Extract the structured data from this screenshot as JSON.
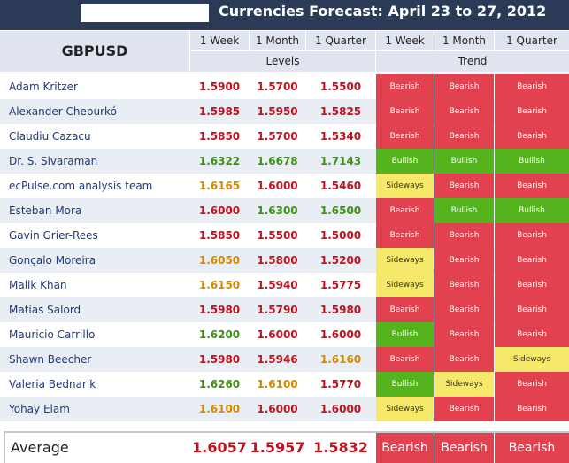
{
  "title": "Currencies Forecast: April 23 to 27, 2012",
  "pair": "GBPUSD",
  "columns": {
    "levels": [
      "1 Week",
      "1 Month",
      "1 Quarter"
    ],
    "trend": [
      "1 Week",
      "1 Month",
      "1 Quarter"
    ],
    "levels_group": "Levels",
    "trend_group": "Trend"
  },
  "colors": {
    "bearish": "#e2424f",
    "bullish": "#55b41e",
    "sideways": "#f5e86a",
    "header_bg": "#2a3a57"
  },
  "rows": [
    {
      "name": "Adam Kritzer",
      "levels": [
        "1.5900",
        "1.5700",
        "1.5500"
      ],
      "level_colors": [
        "red",
        "red",
        "red"
      ],
      "trend": [
        "Bearish",
        "Bearish",
        "Bearish"
      ]
    },
    {
      "name": "Alexander Chepurkó",
      "levels": [
        "1.5985",
        "1.5950",
        "1.5825"
      ],
      "level_colors": [
        "red",
        "red",
        "red"
      ],
      "trend": [
        "Bearish",
        "Bearish",
        "Bearish"
      ]
    },
    {
      "name": "Claudiu Cazacu",
      "levels": [
        "1.5850",
        "1.5700",
        "1.5340"
      ],
      "level_colors": [
        "red",
        "red",
        "red"
      ],
      "trend": [
        "Bearish",
        "Bearish",
        "Bearish"
      ]
    },
    {
      "name": "Dr. S. Sivaraman",
      "levels": [
        "1.6322",
        "1.6678",
        "1.7143"
      ],
      "level_colors": [
        "green",
        "green",
        "green"
      ],
      "trend": [
        "Bullish",
        "Bullish",
        "Bullish"
      ]
    },
    {
      "name": "ecPulse.com analysis team",
      "levels": [
        "1.6165",
        "1.6000",
        "1.5460"
      ],
      "level_colors": [
        "orange",
        "red",
        "red"
      ],
      "trend": [
        "Sideways",
        "Bearish",
        "Bearish"
      ]
    },
    {
      "name": "Esteban Mora",
      "levels": [
        "1.6000",
        "1.6300",
        "1.6500"
      ],
      "level_colors": [
        "red",
        "green",
        "green"
      ],
      "trend": [
        "Bearish",
        "Bullish",
        "Bullish"
      ]
    },
    {
      "name": "Gavin Grier-Rees",
      "levels": [
        "1.5850",
        "1.5500",
        "1.5000"
      ],
      "level_colors": [
        "red",
        "red",
        "red"
      ],
      "trend": [
        "Bearish",
        "Bearish",
        "Bearish"
      ]
    },
    {
      "name": "Gonçalo Moreira",
      "levels": [
        "1.6050",
        "1.5800",
        "1.5200"
      ],
      "level_colors": [
        "orange",
        "red",
        "red"
      ],
      "trend": [
        "Sideways",
        "Bearish",
        "Bearish"
      ]
    },
    {
      "name": "Malik Khan",
      "levels": [
        "1.6150",
        "1.5940",
        "1.5775"
      ],
      "level_colors": [
        "orange",
        "red",
        "red"
      ],
      "trend": [
        "Sideways",
        "Bearish",
        "Bearish"
      ]
    },
    {
      "name": "Matías Salord",
      "levels": [
        "1.5980",
        "1.5790",
        "1.5980"
      ],
      "level_colors": [
        "red",
        "red",
        "red"
      ],
      "trend": [
        "Bearish",
        "Bearish",
        "Bearish"
      ]
    },
    {
      "name": "Mauricio Carrillo",
      "levels": [
        "1.6200",
        "1.6000",
        "1.6000"
      ],
      "level_colors": [
        "green",
        "red",
        "red"
      ],
      "trend": [
        "Bullish",
        "Bearish",
        "Bearish"
      ]
    },
    {
      "name": "Shawn Beecher",
      "levels": [
        "1.5980",
        "1.5946",
        "1.6160"
      ],
      "level_colors": [
        "red",
        "red",
        "orange"
      ],
      "trend": [
        "Bearish",
        "Bearish",
        "Sideways"
      ]
    },
    {
      "name": "Valeria Bednarik",
      "levels": [
        "1.6260",
        "1.6100",
        "1.5770"
      ],
      "level_colors": [
        "green",
        "orange",
        "red"
      ],
      "trend": [
        "Bullish",
        "Sideways",
        "Bearish"
      ]
    },
    {
      "name": "Yohay Elam",
      "levels": [
        "1.6100",
        "1.6000",
        "1.6000"
      ],
      "level_colors": [
        "orange",
        "red",
        "red"
      ],
      "trend": [
        "Sideways",
        "Bearish",
        "Bearish"
      ]
    }
  ],
  "average": {
    "label": "Average",
    "levels": [
      "1.6057",
      "1.5957",
      "1.5832"
    ],
    "trend": [
      "Bearish",
      "Bearish",
      "Bearish"
    ]
  }
}
